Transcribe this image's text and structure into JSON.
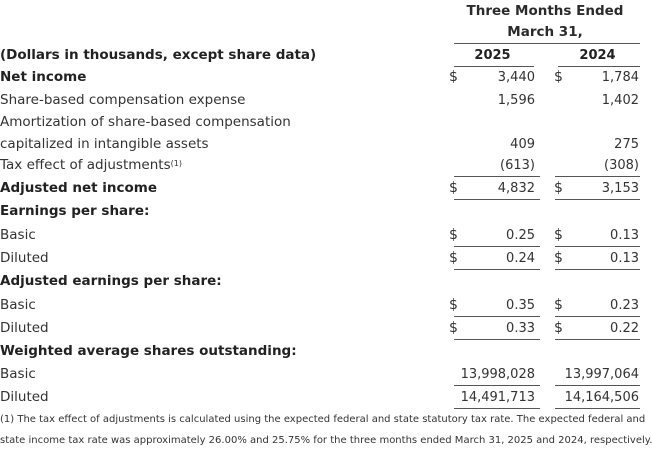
{
  "header": {
    "period_line1": "Three Months Ended",
    "period_line2": "March 31,",
    "units_label": "(Dollars in thousands, except share data)",
    "col_2025": "2025",
    "col_2024": "2024"
  },
  "currency_symbol": "$",
  "rows": {
    "net_income": {
      "label": "Net income",
      "v2025": "3,440",
      "v2024": "1,784"
    },
    "sbc": {
      "label": "Share-based compensation expense",
      "v2025": "1,596",
      "v2024": "1,402"
    },
    "amort_line1": {
      "label": "Amortization of share-based compensation"
    },
    "amort_line2": {
      "label": "capitalized in intangible assets",
      "v2025": "409",
      "v2024": "275"
    },
    "tax_effect": {
      "label": "Tax effect of adjustments",
      "sup": "(1)",
      "v2025": "(613)",
      "v2024": "(308)"
    },
    "adj_net_income": {
      "label": "Adjusted net income",
      "v2025": "4,832",
      "v2024": "3,153"
    },
    "eps_header": {
      "label": "Earnings per share:"
    },
    "eps_basic": {
      "label": "Basic",
      "v2025": "0.25",
      "v2024": "0.13"
    },
    "eps_diluted": {
      "label": "Diluted",
      "v2025": "0.24",
      "v2024": "0.13"
    },
    "adj_eps_header": {
      "label": "Adjusted earnings per share:"
    },
    "adj_eps_basic": {
      "label": "Basic",
      "v2025": "0.35",
      "v2024": "0.23"
    },
    "adj_eps_diluted": {
      "label": "Diluted",
      "v2025": "0.33",
      "v2024": "0.22"
    },
    "shares_header": {
      "label": "Weighted average shares outstanding:"
    },
    "shares_basic": {
      "label": "Basic",
      "v2025": "13,998,028",
      "v2024": "13,997,064"
    },
    "shares_diluted": {
      "label": "Diluted",
      "v2025": "14,491,713",
      "v2024": "14,164,506"
    }
  },
  "footnote": {
    "line1": "(1) The tax effect of adjustments is calculated using the expected federal and state statutory tax rate. The expected federal and",
    "line2": "state income tax rate was approximately 26.00% and 25.75% for the three months ended March 31, 2025 and 2024, respectively."
  }
}
